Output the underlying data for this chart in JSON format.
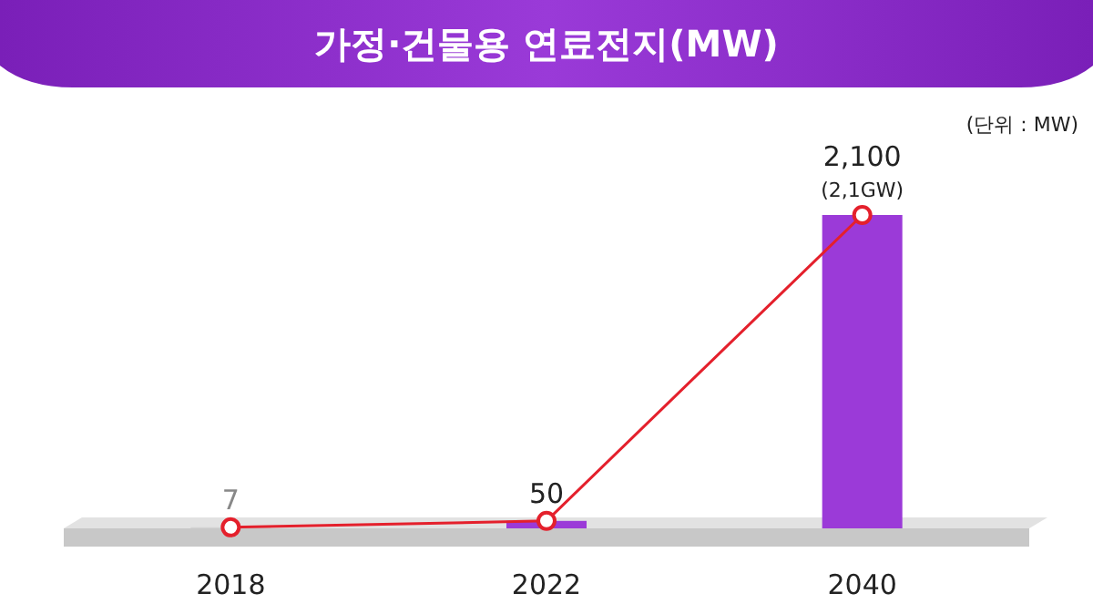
{
  "chart_data": {
    "type": "bar",
    "title": "가정·건물용 연료전지(MW)",
    "categories": [
      "2018",
      "2022",
      "2040"
    ],
    "series": [
      {
        "colors": [
          "#d2d2d2",
          "#9b3ad8",
          "#9b3ad8"
        ],
        "values": [
          7,
          50,
          2100
        ],
        "value_labels": [
          "7",
          "50",
          "2,100"
        ]
      },
      {
        "type": "line",
        "color": "#e4202c",
        "values": [
          7,
          50,
          2100
        ]
      }
    ],
    "marker": "circle",
    "annotations": [
      {
        "text": "(2,1GW)",
        "x": "2040",
        "y": 2100
      },
      "(단위 : MW)"
    ]
  }
}
